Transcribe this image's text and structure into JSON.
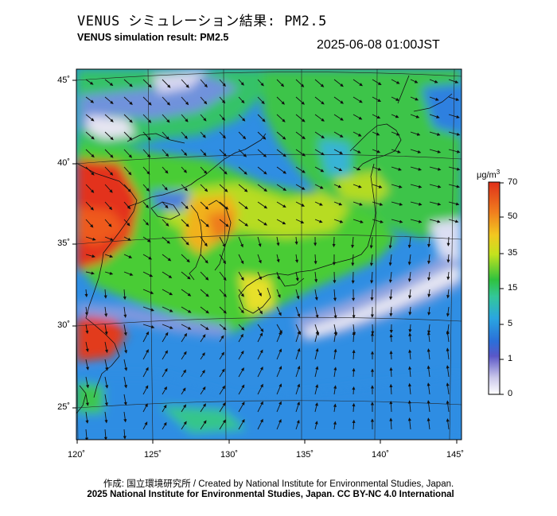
{
  "header": {
    "title_jp": "VENUS シミュレーション結果: PM2.5",
    "title_en": "VENUS simulation result: PM2.5",
    "timestamp": "2025-06-08 01:00JST"
  },
  "map": {
    "variable": "PM2.5",
    "lon_range": [
      120,
      145
    ],
    "lat_range": [
      23,
      46
    ],
    "lat_labels": [
      "45˚",
      "40˚",
      "35˚",
      "30˚",
      "25˚"
    ],
    "lon_labels": [
      "120˚",
      "125˚",
      "130˚",
      "135˚",
      "140˚",
      "145˚"
    ],
    "features": [
      "wind vectors",
      "coastlines",
      "lat/lon graticule"
    ],
    "colors": {
      "very_low": "#e6e6f2",
      "low": "#2f7ee0",
      "mid": "#2ec44a",
      "high": "#f0e21a",
      "very_high": "#e8321c"
    }
  },
  "colorbar": {
    "unit_base": "μg/m",
    "unit_exp": "3",
    "ticks": [
      "70",
      "50",
      "35",
      "15",
      "5",
      "1",
      "0"
    ]
  },
  "footer": {
    "credit_line": "作成: 国立環境研究所 / Created by National Institute for Environmental Studies, Japan.",
    "license_line": "2025 National Institute for Environmental Studies, Japan. CC BY-NC 4.0 International"
  }
}
